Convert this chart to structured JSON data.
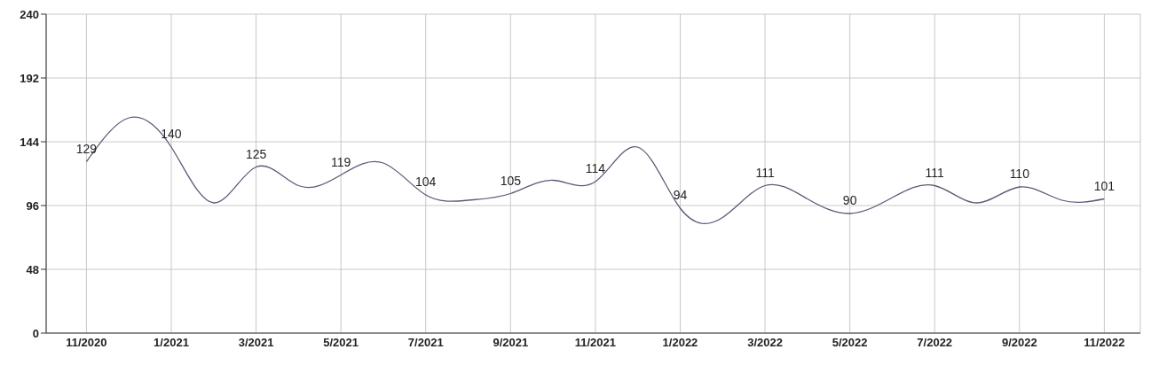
{
  "chart_data": {
    "type": "line",
    "categories": [
      "11/2020",
      null,
      "1/2021",
      null,
      "3/2021",
      null,
      "5/2021",
      null,
      "7/2021",
      null,
      "9/2021",
      null,
      "11/2021",
      null,
      "1/2022",
      null,
      "3/2022",
      null,
      "5/2022",
      null,
      "7/2022",
      null,
      "9/2022",
      null,
      "11/2022"
    ],
    "series": [
      {
        "color": "#5c5a78",
        "values": [
          129,
          162,
          140,
          98,
          125,
          111,
          119,
          128,
          104,
          100,
          105,
          115,
          114,
          140,
          94,
          87,
          111,
          101,
          90,
          102,
          111,
          98,
          110,
          100,
          101
        ],
        "value_labels": [
          "129",
          null,
          "140",
          null,
          "125",
          null,
          "119",
          null,
          "104",
          null,
          "105",
          null,
          "114",
          null,
          "94",
          null,
          "111",
          null,
          "90",
          null,
          "111",
          null,
          "110",
          null,
          "101"
        ]
      }
    ],
    "ylim": [
      0,
      240
    ],
    "yticks": [
      0,
      48,
      96,
      144,
      192,
      240
    ],
    "grid": true,
    "marker": "none",
    "line_style": "solid"
  }
}
